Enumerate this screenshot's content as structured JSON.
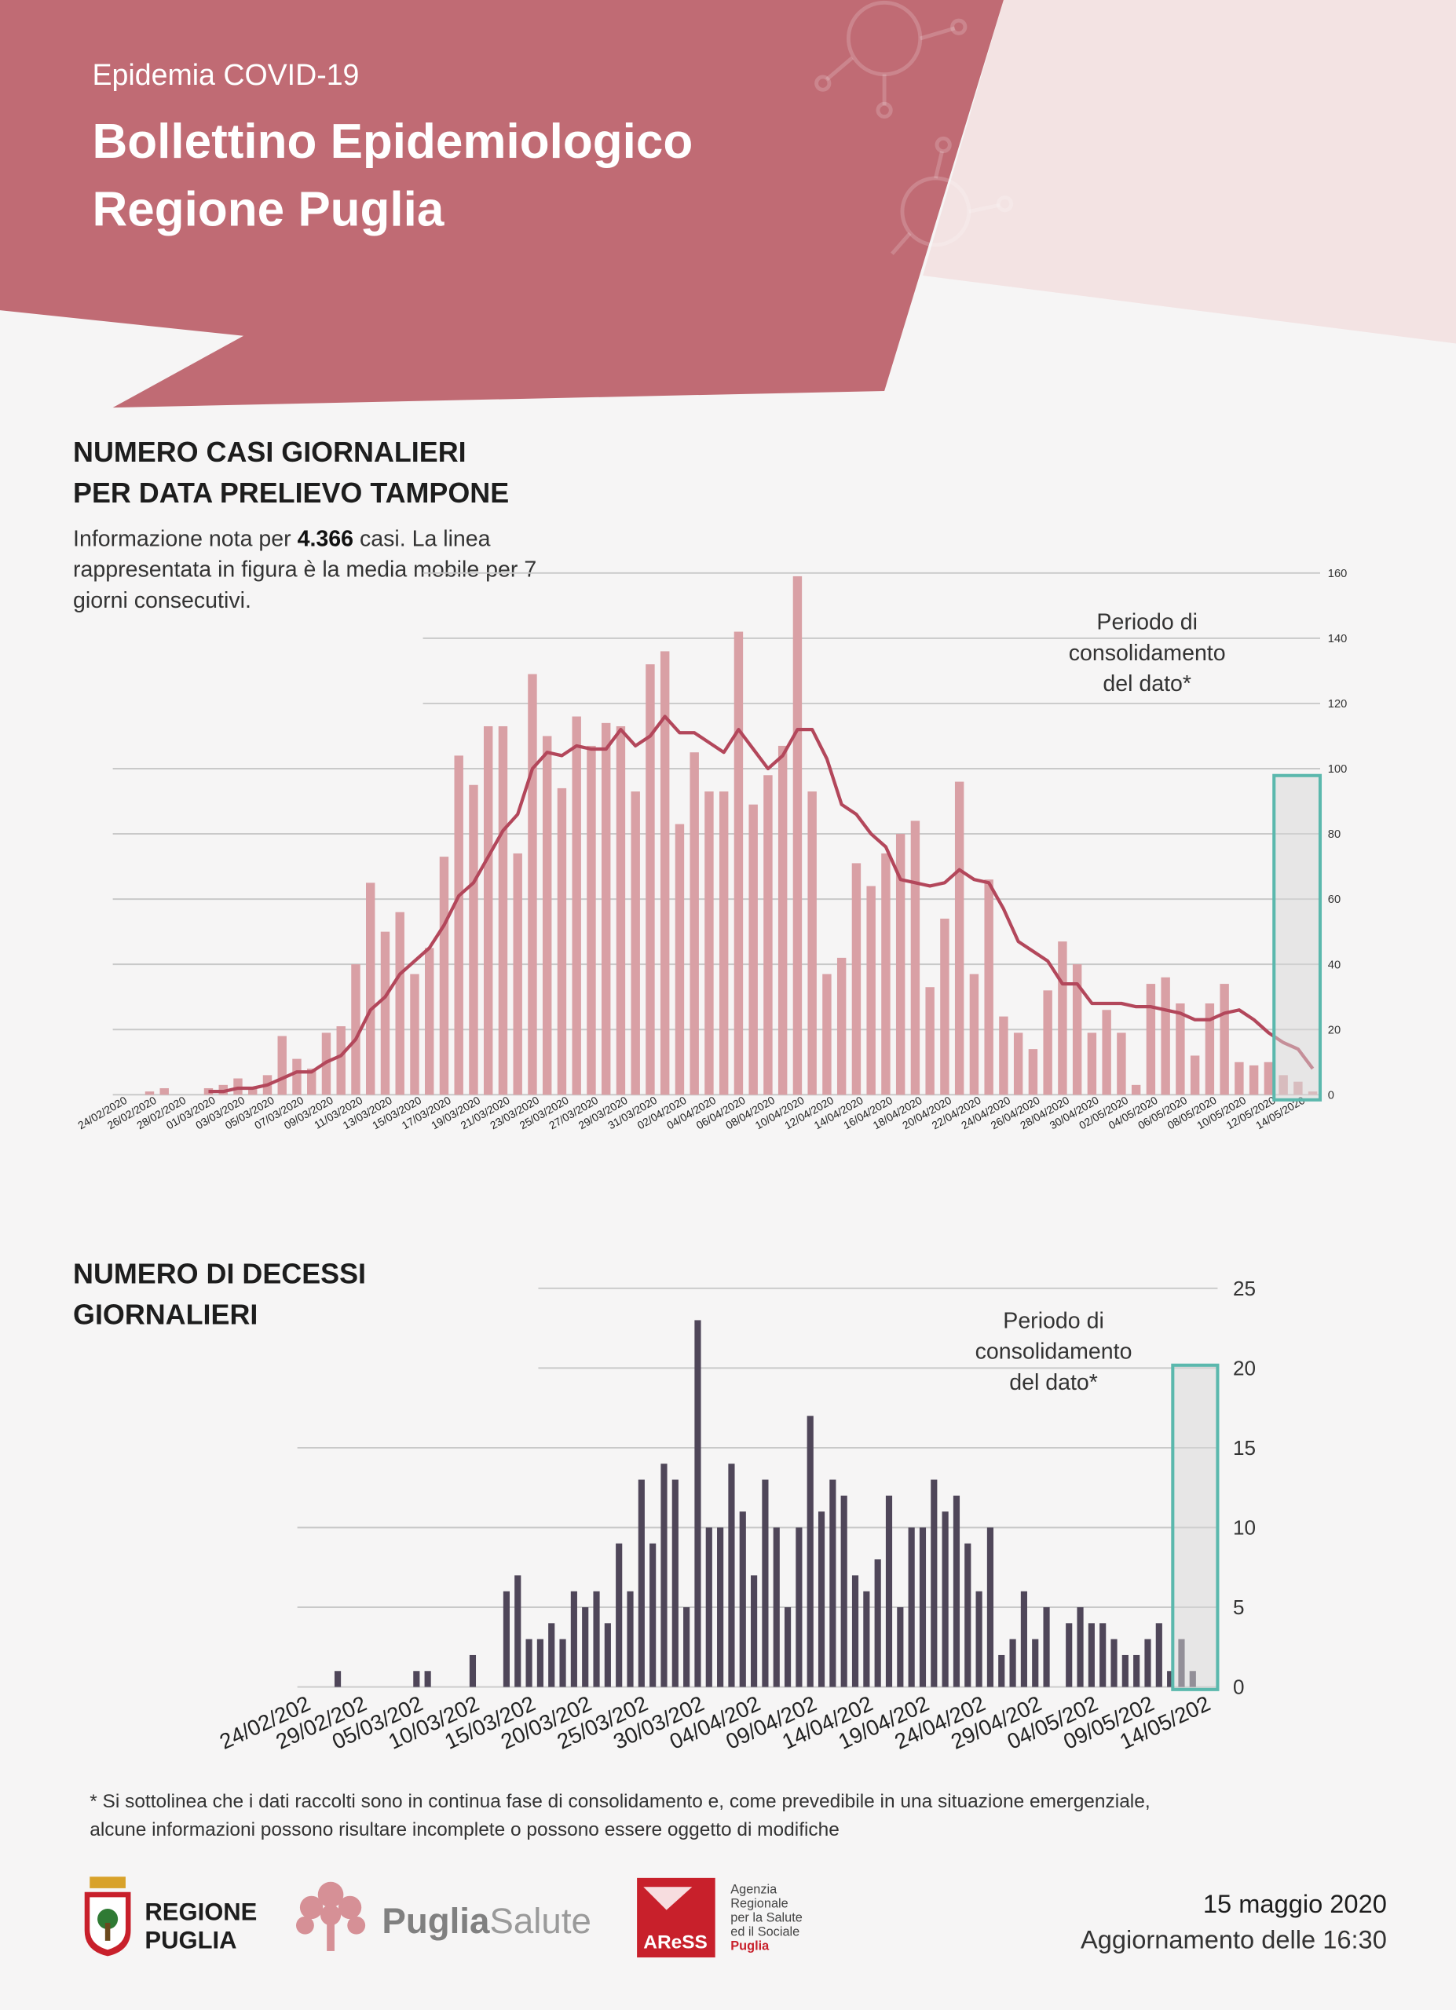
{
  "header": {
    "kicker": "Epidemia COVID-19",
    "title_lines": [
      "Bollettino Epidemiologico",
      "Regione Puglia"
    ]
  },
  "sections": [
    {
      "title_lines": [
        "NUMERO CASI GIORNALIERI",
        "PER DATA PRELIEVO TAMPONE"
      ],
      "description": [
        "Informazione nota per ",
        "4.366",
        " casi. La linea",
        "rappresentata in figura è la media mobile per 7",
        "giorni consecutivi."
      ]
    },
    {
      "title_lines": [
        "NUMERO DI DECESSI",
        "GIORNALIERI"
      ]
    }
  ],
  "chart_data": [
    {
      "type": "bar",
      "categories": [
        "24/02/2020",
        null,
        "26/02/2020",
        null,
        "28/02/2020",
        null,
        "01/03/2020",
        null,
        "03/03/2020",
        null,
        "05/03/2020",
        null,
        "07/03/2020",
        null,
        "09/03/2020",
        null,
        "11/03/2020",
        null,
        "13/03/2020",
        null,
        "15/03/2020",
        null,
        "17/03/2020",
        null,
        "19/03/2020",
        null,
        "21/03/2020",
        null,
        "23/03/2020",
        null,
        "25/03/2020",
        null,
        "27/03/2020",
        null,
        "29/03/2020",
        null,
        "31/03/2020",
        null,
        "02/04/2020",
        null,
        "04/04/2020",
        null,
        "06/04/2020",
        null,
        "08/04/2020",
        null,
        "10/04/2020",
        null,
        "12/04/2020",
        null,
        "14/04/2020",
        null,
        "16/04/2020",
        null,
        "18/04/2020",
        null,
        "20/04/2020",
        null,
        "22/04/2020",
        null,
        "24/04/2020",
        null,
        "26/04/2020",
        null,
        "28/04/2020",
        null,
        "30/04/2020",
        null,
        "02/05/2020",
        null,
        "04/05/2020",
        null,
        "06/05/2020",
        null,
        "08/05/2020",
        null,
        "10/05/2020",
        null,
        "12/05/2020",
        null,
        "14/05/2020",
        null
      ],
      "series": [
        {
          "type": "bar",
          "color": "#d9a0a5",
          "values": [
            0,
            0,
            1,
            2,
            0,
            0,
            2,
            3,
            5,
            2,
            6,
            18,
            11,
            8,
            19,
            21,
            40,
            65,
            50,
            56,
            37,
            45,
            73,
            104,
            95,
            113,
            113,
            74,
            129,
            110,
            94,
            116,
            107,
            114,
            113,
            93,
            132,
            136,
            83,
            105,
            93,
            93,
            142,
            89,
            98,
            107,
            159,
            93,
            37,
            42,
            71,
            64,
            74,
            80,
            84,
            33,
            54,
            96,
            37,
            66,
            24,
            19,
            14,
            32,
            47,
            40,
            19,
            26,
            19,
            3,
            34,
            36,
            28,
            12,
            28,
            34,
            10,
            9,
            10,
            6,
            4,
            1
          ]
        },
        {
          "type": "line",
          "color": "#b3475b",
          "values": [
            null,
            null,
            null,
            null,
            null,
            null,
            1,
            1,
            2,
            2,
            3,
            5,
            7,
            7,
            10,
            12,
            17,
            26,
            30,
            37,
            41,
            45,
            52,
            61,
            65,
            73,
            81,
            86,
            100,
            105,
            104,
            107,
            106,
            106,
            112,
            107,
            110,
            116,
            111,
            111,
            108,
            105,
            112,
            106,
            100,
            104,
            112,
            112,
            103,
            89,
            86,
            80,
            76,
            66,
            65,
            64,
            65,
            69,
            66,
            65,
            57,
            47,
            44,
            41,
            34,
            34,
            28,
            28,
            28,
            27,
            27,
            26,
            25,
            23,
            23,
            25,
            26,
            23,
            19,
            16,
            14,
            8
          ]
        }
      ],
      "ylim": [
        0,
        160
      ],
      "yticks": [
        0,
        20,
        40,
        60,
        80,
        100,
        120,
        140,
        160
      ],
      "grid": true,
      "annotation": [
        "Periodo di",
        "consolidamento",
        "del dato*"
      ]
    },
    {
      "type": "bar",
      "categories": [
        "24/02/202",
        null,
        null,
        null,
        null,
        "29/02/202",
        null,
        null,
        null,
        null,
        "05/03/202",
        null,
        null,
        null,
        null,
        "10/03/202",
        null,
        null,
        null,
        null,
        "15/03/202",
        null,
        null,
        null,
        null,
        "20/03/202",
        null,
        null,
        null,
        null,
        "25/03/202",
        null,
        null,
        null,
        null,
        "30/03/202",
        null,
        null,
        null,
        null,
        "04/04/202",
        null,
        null,
        null,
        null,
        "09/04/202",
        null,
        null,
        null,
        null,
        "14/04/202",
        null,
        null,
        null,
        null,
        "19/04/202",
        null,
        null,
        null,
        null,
        "24/04/202",
        null,
        null,
        null,
        null,
        "29/04/202",
        null,
        null,
        null,
        null,
        "04/05/202",
        null,
        null,
        null,
        null,
        "09/05/202",
        null,
        null,
        null,
        null,
        "14/05/202"
      ],
      "series": [
        {
          "type": "bar",
          "color": "#4f4659",
          "values": [
            0,
            0,
            0,
            0,
            1,
            0,
            0,
            0,
            0,
            0,
            0,
            1,
            1,
            0,
            0,
            0,
            2,
            0,
            0,
            6,
            7,
            3,
            3,
            4,
            3,
            6,
            5,
            6,
            4,
            9,
            6,
            13,
            9,
            14,
            13,
            5,
            23,
            10,
            10,
            14,
            11,
            7,
            13,
            10,
            5,
            10,
            17,
            11,
            13,
            12,
            7,
            6,
            8,
            12,
            5,
            10,
            10,
            13,
            11,
            12,
            9,
            6,
            10,
            2,
            3,
            6,
            3,
            5,
            0,
            4,
            5,
            4,
            4,
            3,
            2,
            2,
            3,
            4,
            1,
            3,
            1
          ]
        }
      ],
      "ylim": [
        0,
        25
      ],
      "yticks": [
        0,
        5,
        10,
        15,
        20,
        25
      ],
      "grid": true,
      "annotation": [
        "Periodo di",
        "consolidamento",
        "del dato*"
      ]
    }
  ],
  "footnote": [
    "* Si sottolinea che i dati raccolti sono in continua fase di consolidamento e, come prevedibile in una situazione emergenziale,",
    "alcune informazioni possono risultare incomplete o possono essere oggetto di modifiche"
  ],
  "footer": {
    "regione": [
      "REGIONE",
      "PUGLIA"
    ],
    "puglia_salute": [
      "Puglia",
      "Salute"
    ],
    "aress": {
      "logo": "AReSS",
      "lines": [
        "Agenzia",
        "Regionale",
        "per la Salute",
        "ed il Sociale"
      ],
      "highlight": "Puglia"
    },
    "date": "15 maggio 2020",
    "update": "Aggiornamento delle 16:30"
  }
}
